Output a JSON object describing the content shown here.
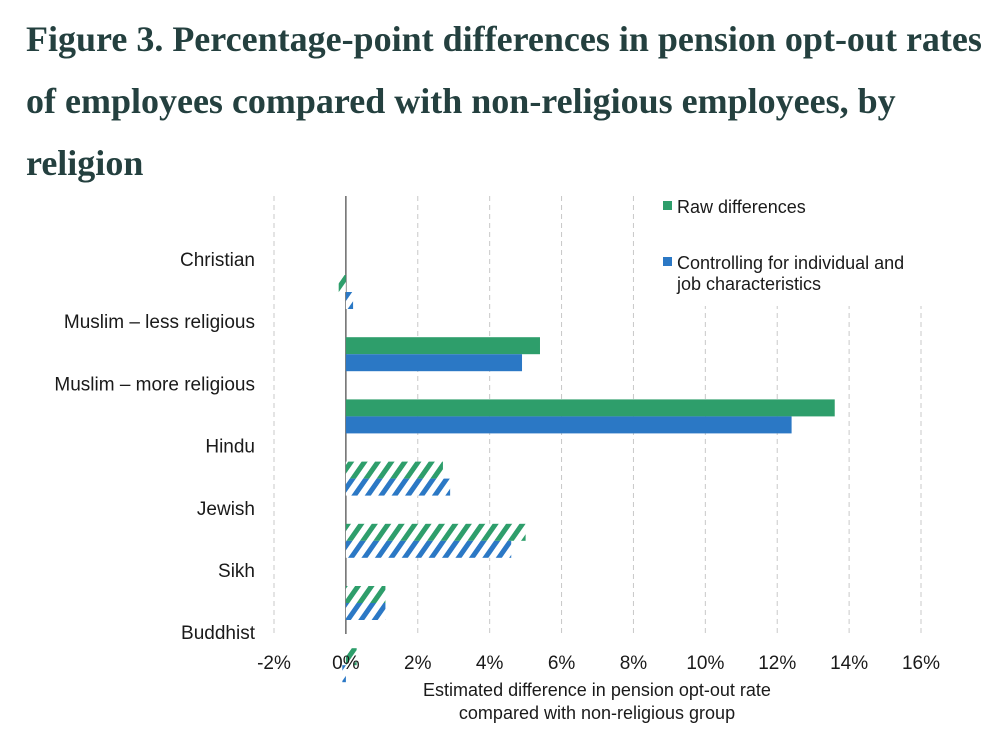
{
  "title": "Figure 3. Percentage-point differences in pension opt-out rates of employees compared with non-religious employees, by religion",
  "colors": {
    "raw": "#2e9e6b",
    "controlled": "#2b78c5",
    "grid": "#c8c8c8",
    "axis": "#444444"
  },
  "chart_data": {
    "type": "bar",
    "orientation": "horizontal",
    "categories": [
      "Christian",
      "Muslim – less religious",
      "Muslim – more religious",
      "Hindu",
      "Jewish",
      "Sikh",
      "Buddhist"
    ],
    "series": [
      {
        "name": "Raw differences",
        "values": [
          -0.2,
          5.4,
          13.6,
          2.7,
          5.0,
          1.1,
          0.3
        ],
        "hatched": [
          true,
          false,
          false,
          true,
          true,
          true,
          true
        ]
      },
      {
        "name": "Controlling for individual and job characteristics",
        "values": [
          0.2,
          4.9,
          12.4,
          2.9,
          4.6,
          1.1,
          -0.1
        ],
        "hatched": [
          true,
          false,
          false,
          true,
          true,
          true,
          true
        ]
      }
    ],
    "legend_lines": [
      [
        "Raw differences"
      ],
      [
        "Controlling for individual and",
        "job characteristics"
      ]
    ],
    "xlim": [
      -2,
      16
    ],
    "xticks": [
      -2,
      0,
      2,
      4,
      6,
      8,
      10,
      12,
      14,
      16
    ],
    "xtick_labels": [
      "-2%",
      "0%",
      "2%",
      "4%",
      "6%",
      "8%",
      "10%",
      "12%",
      "14%",
      "16%"
    ],
    "xlabel_lines": [
      "Estimated difference in pension opt-out rate",
      "compared with non-religious group"
    ],
    "grid": true,
    "legend_position": "top-right"
  }
}
